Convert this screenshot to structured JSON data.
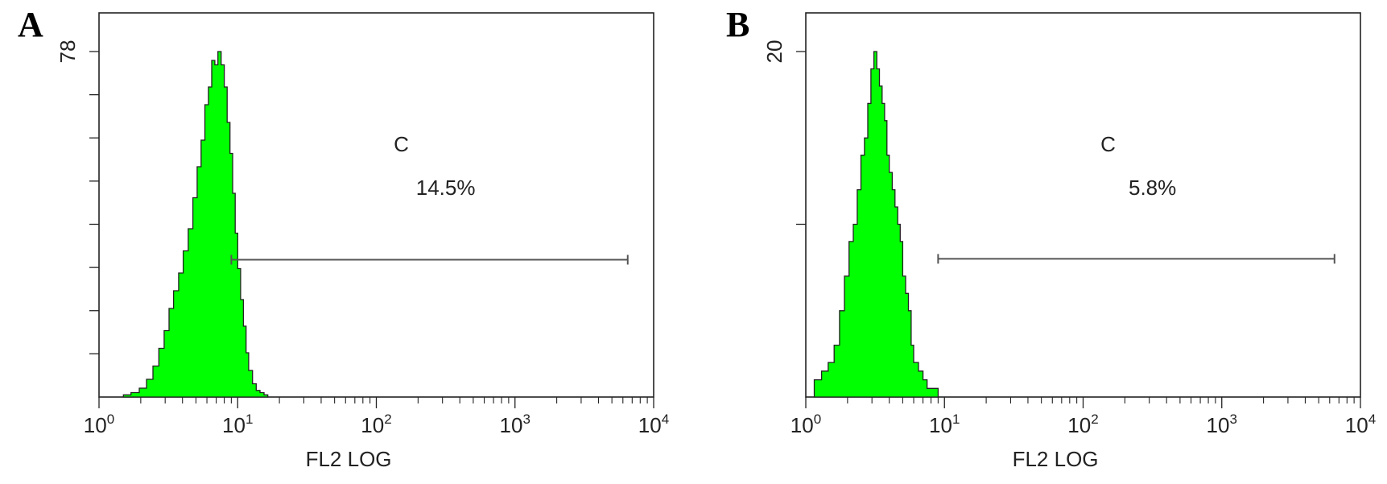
{
  "chart_data": [
    {
      "type": "area",
      "panel_label": "A",
      "xlabel": "FL2 LOG",
      "ylabel": "",
      "x_scale": "log",
      "xlim": [
        1,
        10000
      ],
      "x_ticks": [
        {
          "base": "10",
          "exp": "0"
        },
        {
          "base": "10",
          "exp": "1"
        },
        {
          "base": "10",
          "exp": "2"
        },
        {
          "base": "10",
          "exp": "3"
        },
        {
          "base": "10",
          "exp": "4"
        }
      ],
      "ylim": [
        0,
        78
      ],
      "y_top_label": "78",
      "y_minor_ticks": 8,
      "fill_color": "#00ff00",
      "line_color": "#222222",
      "histogram": {
        "x": [
          1.5,
          1.7,
          1.95,
          2.2,
          2.45,
          2.7,
          2.95,
          3.2,
          3.45,
          3.75,
          4.05,
          4.4,
          4.75,
          5.1,
          5.45,
          5.8,
          6.15,
          6.5,
          6.85,
          7.2,
          7.6,
          8.0,
          8.4,
          8.8,
          9.2,
          9.6,
          10.0,
          10.5,
          11.0,
          11.5,
          12.0,
          12.8,
          13.6,
          14.5,
          15.5,
          16.5
        ],
        "counts": [
          0.5,
          1,
          2,
          4,
          7,
          11,
          15,
          20,
          24,
          28,
          33,
          38,
          45,
          52,
          58,
          66,
          70,
          76,
          75,
          78,
          75,
          70,
          62,
          55,
          46,
          37,
          29,
          22,
          16,
          10,
          6,
          3,
          1.5,
          1,
          0.5,
          0
        ]
      },
      "gate": {
        "label": "C",
        "value_text": "14.5%",
        "x_start": 9.0,
        "x_end": 6500,
        "y": 31
      }
    },
    {
      "type": "area",
      "panel_label": "B",
      "xlabel": "FL2 LOG",
      "ylabel": "",
      "x_scale": "log",
      "xlim": [
        1,
        10000
      ],
      "x_ticks": [
        {
          "base": "10",
          "exp": "0"
        },
        {
          "base": "10",
          "exp": "1"
        },
        {
          "base": "10",
          "exp": "2"
        },
        {
          "base": "10",
          "exp": "3"
        },
        {
          "base": "10",
          "exp": "4"
        }
      ],
      "ylim": [
        0,
        20
      ],
      "y_top_label": "20",
      "y_minor_ticks": 2,
      "fill_color": "#00ff00",
      "line_color": "#222222",
      "histogram": {
        "x": [
          1.15,
          1.3,
          1.45,
          1.6,
          1.75,
          1.9,
          2.05,
          2.2,
          2.35,
          2.5,
          2.65,
          2.8,
          2.95,
          3.1,
          3.25,
          3.4,
          3.55,
          3.7,
          3.85,
          4.0,
          4.2,
          4.4,
          4.6,
          4.8,
          5.0,
          5.25,
          5.5,
          5.75,
          6.0,
          6.5,
          7.0,
          7.5,
          8.0,
          9.0
        ],
        "counts": [
          1,
          1.5,
          2,
          3,
          5,
          7,
          9,
          10,
          12,
          14,
          15,
          17,
          19,
          20,
          19,
          18,
          17,
          16,
          14,
          13,
          12,
          11,
          10,
          9,
          7,
          6,
          5,
          3,
          2,
          1.5,
          1,
          0.5,
          0.5,
          0
        ]
      },
      "gate": {
        "label": "C",
        "value_text": "5.8%",
        "x_start": 9.0,
        "x_end": 6500,
        "y": 8
      }
    }
  ]
}
